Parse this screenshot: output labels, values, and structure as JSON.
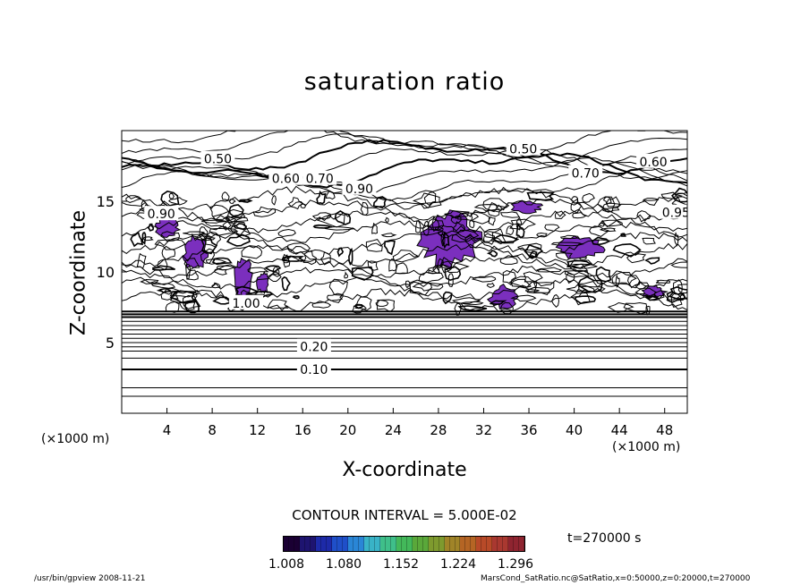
{
  "chart_data": {
    "type": "contour",
    "title": "saturation ratio",
    "xlabel": "X-coordinate",
    "ylabel": "Z-coordinate",
    "x_unit": "(×1000 m)",
    "y_unit": "(×1000 m)",
    "xlim": [
      0,
      50
    ],
    "ylim": [
      0,
      20
    ],
    "x_ticks": [
      4,
      8,
      12,
      16,
      20,
      24,
      28,
      32,
      36,
      40,
      44,
      48
    ],
    "y_ticks": [
      5,
      10,
      15
    ],
    "contour_interval_text": "CONTOUR INTERVAL = 5.000E-02",
    "contour_labels": [
      {
        "text": "0.10",
        "x": 17.0,
        "y": 3.1
      },
      {
        "text": "0.20",
        "x": 17.0,
        "y": 4.7
      },
      {
        "text": "0.50",
        "x": 8.5,
        "y": 18.0
      },
      {
        "text": "0.50",
        "x": 35.5,
        "y": 18.7
      },
      {
        "text": "0.60",
        "x": 14.5,
        "y": 16.6
      },
      {
        "text": "0.70",
        "x": 17.5,
        "y": 16.6
      },
      {
        "text": "0.90",
        "x": 21.0,
        "y": 15.9
      },
      {
        "text": "0.90",
        "x": 3.5,
        "y": 14.1
      },
      {
        "text": "0.70",
        "x": 41.0,
        "y": 17.0
      },
      {
        "text": "0.60",
        "x": 47.0,
        "y": 17.8
      },
      {
        "text": "0.95",
        "x": 49.0,
        "y": 14.2
      },
      {
        "text": "1.00",
        "x": 11.0,
        "y": 7.8
      }
    ],
    "shaded_regions": [
      {
        "x": [
          3,
          5
        ],
        "y": [
          12.5,
          13.8
        ]
      },
      {
        "x": [
          5.5,
          7.5
        ],
        "y": [
          10.2,
          12.5
        ]
      },
      {
        "x": [
          10,
          11.5
        ],
        "y": [
          8.0,
          11.0
        ]
      },
      {
        "x": [
          12,
          13
        ],
        "y": [
          8.5,
          10.0
        ]
      },
      {
        "x": [
          26.5,
          31.5
        ],
        "y": [
          10.5,
          14.2
        ]
      },
      {
        "x": [
          34.5,
          37
        ],
        "y": [
          14.2,
          15.0
        ]
      },
      {
        "x": [
          38.5,
          42.5
        ],
        "y": [
          11.0,
          12.5
        ]
      },
      {
        "x": [
          32.5,
          35
        ],
        "y": [
          7.5,
          9.0
        ]
      },
      {
        "x": [
          46,
          48
        ],
        "y": [
          8.2,
          9.0
        ]
      }
    ],
    "colorbar": {
      "ticks": [
        "1.008",
        "1.080",
        "1.152",
        "1.224",
        "1.296"
      ],
      "colors": [
        "#1a0033",
        "#1e1470",
        "#1d2aa8",
        "#1f4fc9",
        "#2a86d6",
        "#39b3c7",
        "#3fbf8a",
        "#43b85a",
        "#5aa83a",
        "#7e9a2e",
        "#a08428",
        "#b56524",
        "#b84a28",
        "#a93830",
        "#8f2430"
      ]
    },
    "time_label": "t=270000 s"
  },
  "footer": {
    "left": "/usr/bin/gpview  2008-11-21",
    "right": "MarsCond_SatRatio.nc@SatRatio,x=0:50000,z=0:20000,t=270000"
  },
  "colors": {
    "shade": "#7b2fbe",
    "line": "#000000",
    "background": "#ffffff"
  }
}
